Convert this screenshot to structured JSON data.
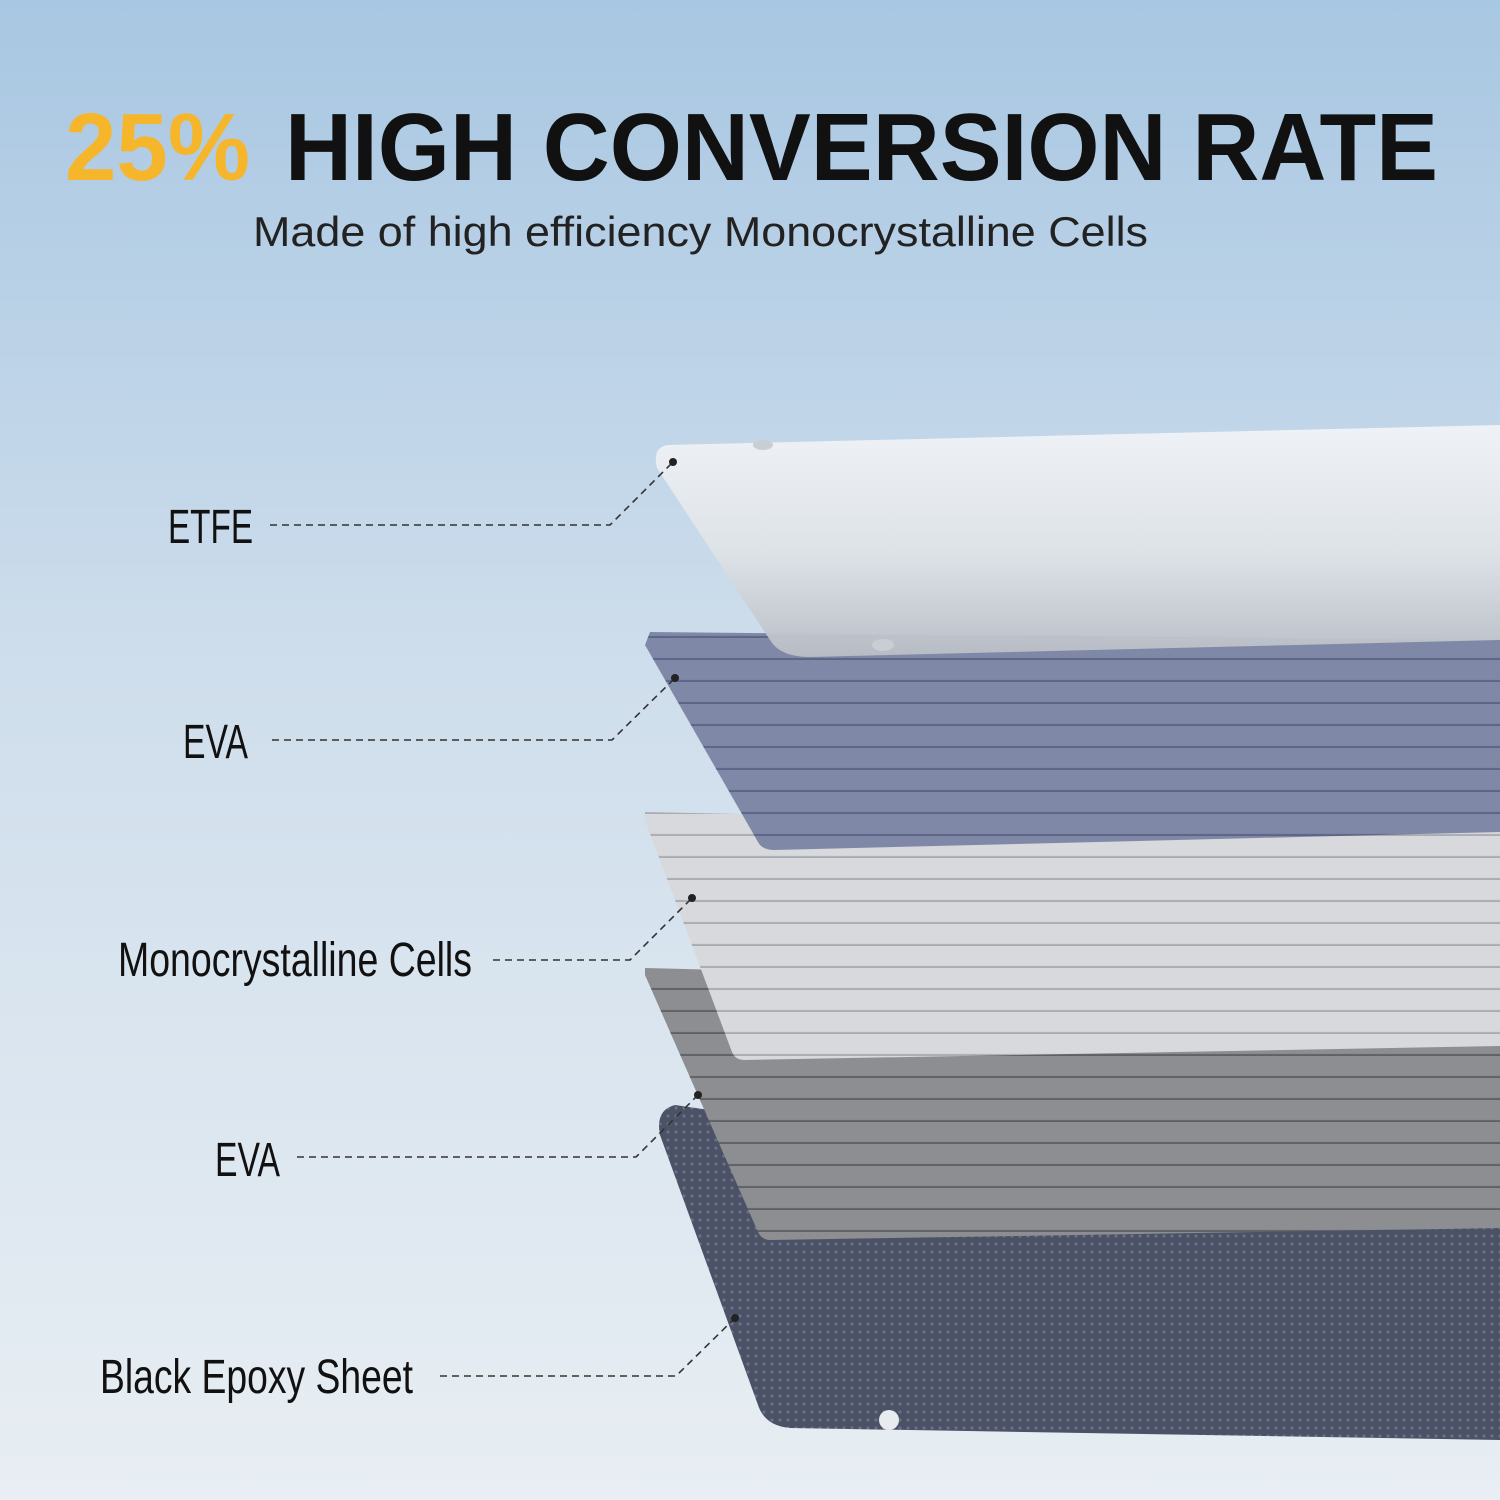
{
  "header": {
    "highlight": "25%",
    "title": "HIGH CONVERSION RATE",
    "subtitle": "Made of high efficiency Monocrystalline Cells"
  },
  "layers": [
    {
      "label": "ETFE"
    },
    {
      "label": "EVA"
    },
    {
      "label": "Monocrystalline Cells"
    },
    {
      "label": "EVA"
    },
    {
      "label": "Black Epoxy Sheet"
    }
  ]
}
